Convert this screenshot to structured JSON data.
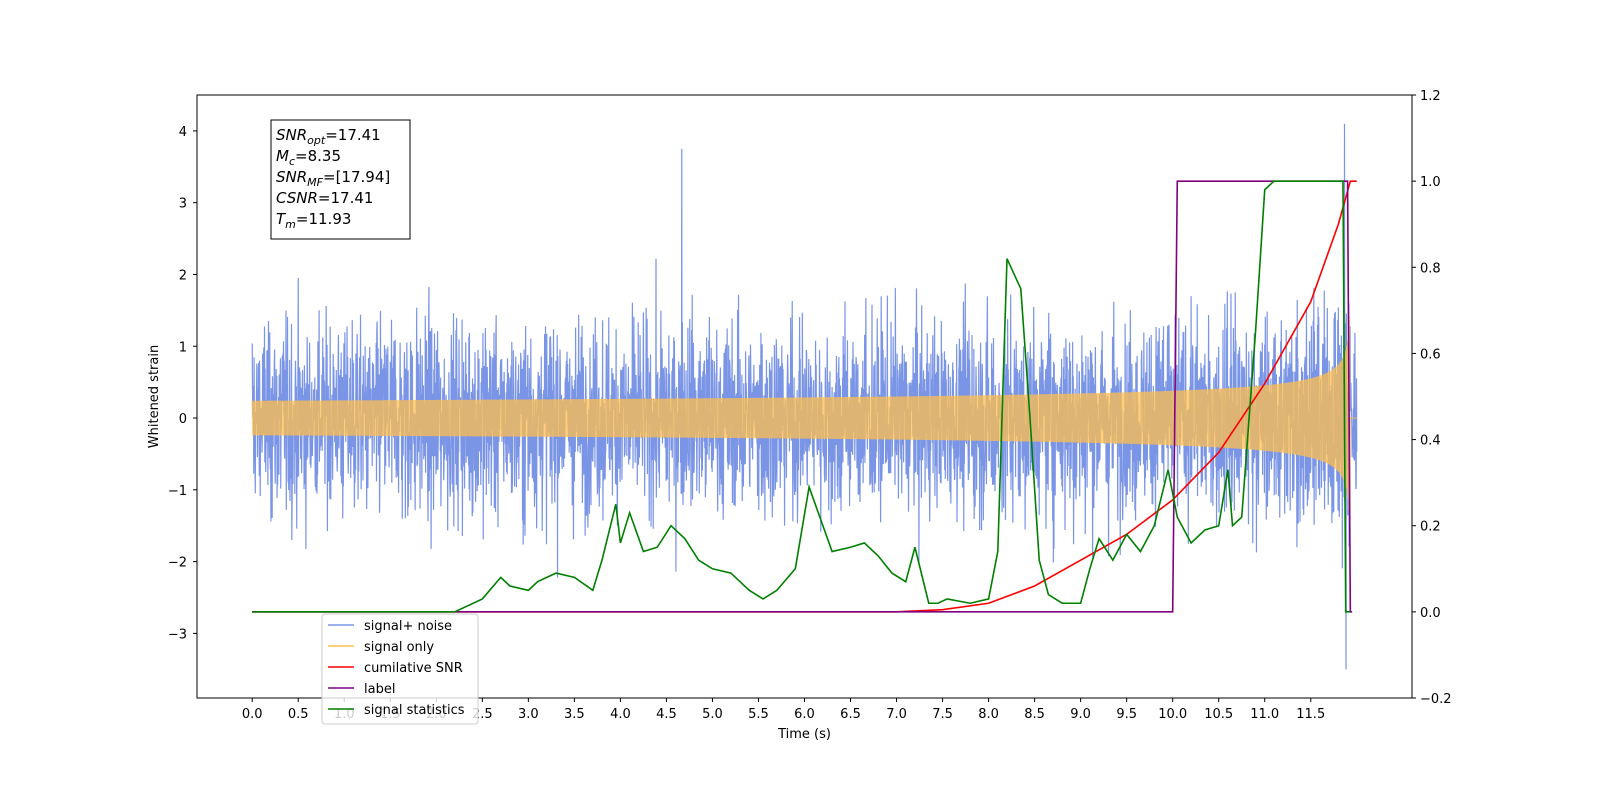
{
  "chart_data": {
    "type": "line",
    "xlabel": "Time (s)",
    "ylabel_left": "Whitened strain",
    "ylabel_right": "",
    "xlim": [
      -0.6,
      12.6
    ],
    "ylim_left": [
      -3.9,
      4.5
    ],
    "ylim_right": [
      -0.2,
      1.2
    ],
    "grid": false,
    "legend_placement": "lower-left",
    "x_ticks": [
      0.0,
      0.5,
      1.0,
      1.5,
      2.0,
      2.5,
      3.0,
      3.5,
      4.0,
      4.5,
      5.0,
      5.5,
      6.0,
      6.5,
      7.0,
      7.5,
      8.0,
      8.5,
      9.0,
      9.5,
      10.0,
      10.5,
      11.0,
      11.5
    ],
    "x_tick_labels": [
      "0.0",
      "0.5",
      "1.0",
      "1.5",
      "2.0",
      "2.5",
      "3.0",
      "3.5",
      "4.0",
      "4.5",
      "5.0",
      "5.5",
      "6.0",
      "6.5",
      "7.0",
      "7.5",
      "8.0",
      "8.5",
      "9.0",
      "9.5",
      "10.0",
      "10.5",
      "11.0",
      "11.5"
    ],
    "y_left_ticks": [
      -3,
      -2,
      -1,
      0,
      1,
      2,
      3,
      4
    ],
    "y_left_tick_labels": [
      "−3",
      "−2",
      "−1",
      "0",
      "1",
      "2",
      "3",
      "4"
    ],
    "y_right_ticks": [
      -0.2,
      0.0,
      0.2,
      0.4,
      0.6,
      0.8,
      1.0,
      1.2
    ],
    "y_right_tick_labels": [
      "−0.2",
      "0.0",
      "0.2",
      "0.4",
      "0.6",
      "0.8",
      "1.0",
      "1.2"
    ],
    "annotation": {
      "lines": [
        {
          "main": "SNR",
          "sub": "opt",
          "rest": "=17.41"
        },
        {
          "main": "M",
          "sub": "c",
          "rest": "=8.35"
        },
        {
          "main": "SNR",
          "sub": "MF",
          "rest": "=[17.94]"
        },
        {
          "main": "CSNR",
          "sub": "",
          "rest": "=17.41"
        },
        {
          "main": "T",
          "sub": "m",
          "rest": "=11.93"
        }
      ]
    },
    "series": [
      {
        "name": "signal+ noise",
        "axis": "left",
        "color": "#7b95e6",
        "kind": "noise",
        "x_range": [
          0.0,
          12.0
        ],
        "noise_std": 0.9,
        "envelope_max": 1.4,
        "merger_time": 11.93,
        "max_value": 4.1,
        "min_value": -3.5
      },
      {
        "name": "signal only",
        "axis": "left",
        "color": "#ffbf4d",
        "kind": "chirp",
        "x_range": [
          0.0,
          12.0
        ],
        "merger_time": 11.93,
        "peak_amplitude": 1.5
      },
      {
        "name": "cumilative SNR",
        "axis": "right",
        "color": "#ff0000",
        "x": [
          0.0,
          7.0,
          7.5,
          8.0,
          8.5,
          9.0,
          9.5,
          10.0,
          10.5,
          11.0,
          11.5,
          11.8,
          11.93,
          12.0
        ],
        "y": [
          0.0,
          0.0,
          0.005,
          0.02,
          0.06,
          0.12,
          0.18,
          0.26,
          0.37,
          0.53,
          0.72,
          0.9,
          1.0,
          1.0
        ]
      },
      {
        "name": "label",
        "axis": "right",
        "color": "#800080",
        "x": [
          0.0,
          10.0,
          10.05,
          11.9,
          11.93,
          11.95
        ],
        "y": [
          0.0,
          0.0,
          1.0,
          1.0,
          0.0,
          0.0
        ]
      },
      {
        "name": "signal statistics",
        "axis": "right",
        "color": "#008000",
        "x": [
          0.0,
          2.2,
          2.5,
          2.7,
          2.8,
          3.0,
          3.1,
          3.3,
          3.5,
          3.7,
          3.8,
          3.95,
          4.0,
          4.1,
          4.25,
          4.4,
          4.55,
          4.7,
          4.85,
          5.0,
          5.2,
          5.4,
          5.55,
          5.7,
          5.9,
          6.05,
          6.2,
          6.3,
          6.5,
          6.65,
          6.8,
          6.95,
          7.1,
          7.2,
          7.35,
          7.45,
          7.55,
          7.8,
          8.0,
          8.1,
          8.2,
          8.35,
          8.45,
          8.55,
          8.65,
          8.8,
          9.0,
          9.1,
          9.2,
          9.35,
          9.5,
          9.65,
          9.8,
          9.95,
          10.05,
          10.2,
          10.35,
          10.5,
          10.6,
          10.65,
          10.75,
          10.9,
          11.0,
          11.1,
          11.5,
          11.85,
          11.88,
          11.93
        ],
        "y": [
          0.0,
          0.0,
          0.03,
          0.08,
          0.06,
          0.05,
          0.07,
          0.09,
          0.08,
          0.05,
          0.12,
          0.25,
          0.16,
          0.23,
          0.14,
          0.15,
          0.2,
          0.17,
          0.12,
          0.1,
          0.09,
          0.05,
          0.03,
          0.05,
          0.1,
          0.29,
          0.2,
          0.14,
          0.15,
          0.16,
          0.13,
          0.09,
          0.07,
          0.15,
          0.02,
          0.02,
          0.03,
          0.02,
          0.03,
          0.14,
          0.82,
          0.75,
          0.45,
          0.12,
          0.04,
          0.02,
          0.02,
          0.1,
          0.17,
          0.12,
          0.18,
          0.14,
          0.2,
          0.33,
          0.22,
          0.16,
          0.19,
          0.2,
          0.33,
          0.2,
          0.22,
          0.65,
          0.98,
          1.0,
          1.0,
          1.0,
          0.0,
          0.0
        ]
      }
    ]
  }
}
